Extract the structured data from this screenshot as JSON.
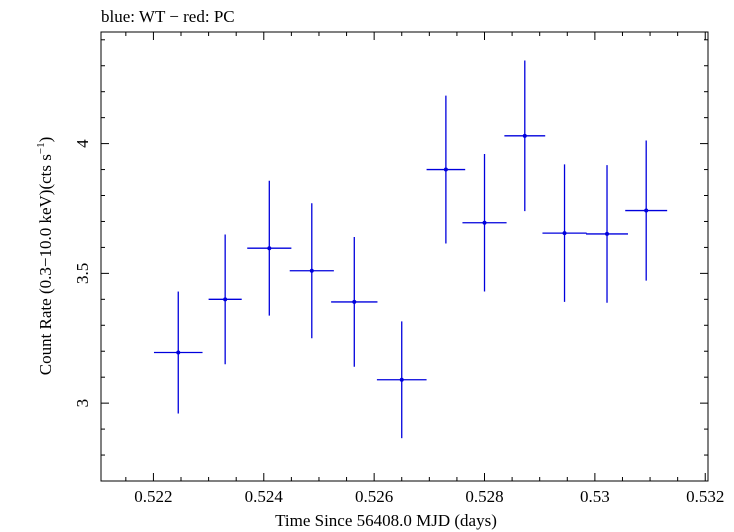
{
  "chart_data": {
    "type": "scatter",
    "title": "blue: WT − red: PC",
    "xlabel": "Time Since 56408.0 MJD (days)",
    "ylabel_main": "Count Rate (0.3−10.0 keV)(cts s",
    "ylabel_sup": "−1",
    "ylabel_close": ")",
    "xlim": [
      0.52105,
      0.53205
    ],
    "ylim": [
      2.7,
      4.43
    ],
    "xticks": [
      0.522,
      0.524,
      0.526,
      0.528,
      0.53,
      0.532
    ],
    "xtick_labels": [
      "0.522",
      "0.524",
      "0.526",
      "0.528",
      "0.53",
      "0.532"
    ],
    "yticks": [
      3,
      3.5,
      4
    ],
    "ytick_labels": [
      "3",
      "3.5",
      "4"
    ],
    "grid": false,
    "series": [
      {
        "color": "#0000dd",
        "points": [
          {
            "x": 0.52245,
            "xerr": 0.00044,
            "y": 3.195,
            "yerr": 0.235
          },
          {
            "x": 0.5233,
            "xerr": 0.0003,
            "y": 3.4,
            "yerr": 0.25
          },
          {
            "x": 0.5241,
            "xerr": 0.0004,
            "y": 3.597,
            "yerr": 0.26
          },
          {
            "x": 0.52487,
            "xerr": 0.0004,
            "y": 3.51,
            "yerr": 0.26
          },
          {
            "x": 0.52564,
            "xerr": 0.00042,
            "y": 3.39,
            "yerr": 0.25
          },
          {
            "x": 0.5265,
            "xerr": 0.00045,
            "y": 3.09,
            "yerr": 0.225
          },
          {
            "x": 0.5273,
            "xerr": 0.00035,
            "y": 3.9,
            "yerr": 0.285
          },
          {
            "x": 0.528,
            "xerr": 0.0004,
            "y": 3.695,
            "yerr": 0.265
          },
          {
            "x": 0.52873,
            "xerr": 0.00037,
            "y": 4.03,
            "yerr": 0.29
          },
          {
            "x": 0.52945,
            "xerr": 0.0004,
            "y": 3.655,
            "yerr": 0.265
          },
          {
            "x": 0.53022,
            "xerr": 0.00038,
            "y": 3.652,
            "yerr": 0.265
          },
          {
            "x": 0.53093,
            "xerr": 0.00038,
            "y": 3.742,
            "yerr": 0.27
          }
        ]
      }
    ]
  }
}
